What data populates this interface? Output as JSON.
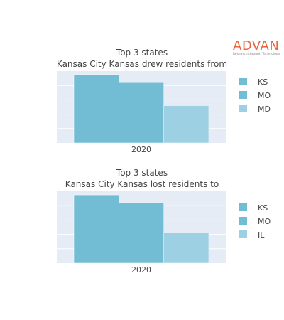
{
  "brand": {
    "name": "ADVAN",
    "tagline": "Research through Technology",
    "color": "#e8643c"
  },
  "plot_background": "#e5ecf6",
  "chart_data": [
    {
      "type": "bar",
      "title_lines": [
        "Top 3 states",
        "Kansas City Kansas drew residents from"
      ],
      "categories": [
        "2020"
      ],
      "series": [
        {
          "name": "KS",
          "values": [
            95
          ],
          "color": "#72bcd4"
        },
        {
          "name": "MO",
          "values": [
            84
          ],
          "color": "#72bcd4"
        },
        {
          "name": "MD",
          "values": [
            52
          ],
          "color": "#9dd0e2"
        }
      ],
      "ylim": [
        0,
        100
      ],
      "xlabel": "",
      "ylabel": "",
      "grid": true,
      "legend": "right",
      "y_tick_labels": false
    },
    {
      "type": "bar",
      "title_lines": [
        "Top 3 states",
        "Kansas City Kansas lost residents to"
      ],
      "categories": [
        "2020"
      ],
      "series": [
        {
          "name": "KS",
          "values": [
            95
          ],
          "color": "#72bcd4"
        },
        {
          "name": "MO",
          "values": [
            84
          ],
          "color": "#72bcd4"
        },
        {
          "name": "IL",
          "values": [
            42
          ],
          "color": "#9dd0e2"
        }
      ],
      "ylim": [
        0,
        100
      ],
      "xlabel": "",
      "ylabel": "",
      "grid": true,
      "legend": "right",
      "y_tick_labels": false
    }
  ]
}
